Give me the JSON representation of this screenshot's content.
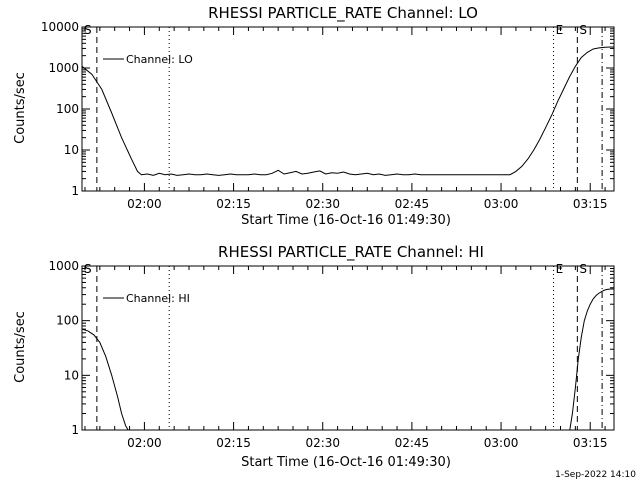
{
  "footer": {
    "timestamp": "1-Sep-2022 14:10"
  },
  "chart_data": [
    {
      "type": "line",
      "title": "RHESSI PARTICLE_RATE Channel: LO",
      "xlabel": "Start Time (16-Oct-16 01:49:30)",
      "ylabel": "Counts/sec",
      "yscale": "log",
      "ylim": [
        1,
        10000
      ],
      "yticks": [
        "1",
        "10",
        "100",
        "1000",
        "10000"
      ],
      "xlim": [
        0,
        5370
      ],
      "xticks": [
        "02:00",
        "02:15",
        "02:30",
        "02:45",
        "03:00",
        "03:15"
      ],
      "legend": "Channel: LO",
      "legend_position": "top-left",
      "event_markers": [
        "S",
        "E",
        "S"
      ],
      "series": [
        {
          "name": "Channel: LO",
          "x": [
            0,
            100,
            200,
            300,
            400,
            500,
            560,
            600,
            660,
            720,
            780,
            840,
            900,
            960,
            1020,
            1080,
            1140,
            1200,
            1260,
            1320,
            1380,
            1440,
            1500,
            1560,
            1620,
            1680,
            1740,
            1800,
            1860,
            1920,
            1980,
            2040,
            2100,
            2160,
            2220,
            2280,
            2340,
            2400,
            2460,
            2520,
            2580,
            2640,
            2700,
            2760,
            2820,
            2880,
            2940,
            3000,
            3060,
            3120,
            3180,
            3240,
            3300,
            3360,
            3420,
            3480,
            3540,
            3600,
            3660,
            3720,
            3780,
            3840,
            3900,
            3960,
            4020,
            4080,
            4140,
            4200,
            4260,
            4320,
            4380,
            4440,
            4500,
            4560,
            4620,
            4680,
            4740,
            4800,
            4860,
            4920,
            4980,
            5040,
            5100,
            5160,
            5220,
            5280,
            5340,
            5370
          ],
          "y": [
            1100,
            700,
            300,
            80,
            20,
            6,
            3,
            2.5,
            2.6,
            2.4,
            2.7,
            2.5,
            2.6,
            2.4,
            2.5,
            2.6,
            2.5,
            2.5,
            2.6,
            2.5,
            2.4,
            2.5,
            2.6,
            2.5,
            2.5,
            2.5,
            2.6,
            2.5,
            2.5,
            2.7,
            3.2,
            2.6,
            2.8,
            3.0,
            2.6,
            2.7,
            2.9,
            3.1,
            2.6,
            2.8,
            2.7,
            2.9,
            2.6,
            2.5,
            2.6,
            2.7,
            2.5,
            2.6,
            2.4,
            2.5,
            2.6,
            2.5,
            2.5,
            2.6,
            2.5,
            2.5,
            2.5,
            2.5,
            2.5,
            2.5,
            2.5,
            2.5,
            2.5,
            2.5,
            2.5,
            2.5,
            2.5,
            2.5,
            2.5,
            2.5,
            3,
            4,
            6,
            10,
            18,
            35,
            70,
            150,
            300,
            600,
            1100,
            1800,
            2400,
            2900,
            3100,
            3200,
            3250,
            3250
          ]
        }
      ]
    },
    {
      "type": "line",
      "title": "RHESSI PARTICLE_RATE Channel: HI",
      "xlabel": "Start Time (16-Oct-16 01:49:30)",
      "ylabel": "Counts/sec",
      "yscale": "log",
      "ylim": [
        1,
        1000
      ],
      "yticks": [
        "1",
        "10",
        "100",
        "1000"
      ],
      "xlim": [
        0,
        5370
      ],
      "xticks": [
        "02:00",
        "02:15",
        "02:30",
        "02:45",
        "03:00",
        "03:15"
      ],
      "legend": "Channel: HI",
      "legend_position": "top-left",
      "event_markers": [
        "S",
        "E",
        "S"
      ],
      "series": [
        {
          "name": "Channel: HI",
          "x": [
            0,
            60,
            120,
            180,
            240,
            300,
            360,
            400,
            440,
            480,
            4920,
            4950,
            4980,
            5010,
            5040,
            5070,
            5100,
            5130,
            5160,
            5190,
            5220,
            5250,
            5280,
            5310,
            5340,
            5370
          ],
          "y": [
            70,
            65,
            55,
            40,
            22,
            10,
            4,
            2,
            1.2,
            0.9,
            0.9,
            2,
            6,
            20,
            50,
            100,
            150,
            200,
            250,
            290,
            320,
            345,
            365,
            375,
            380,
            380
          ]
        }
      ]
    }
  ]
}
